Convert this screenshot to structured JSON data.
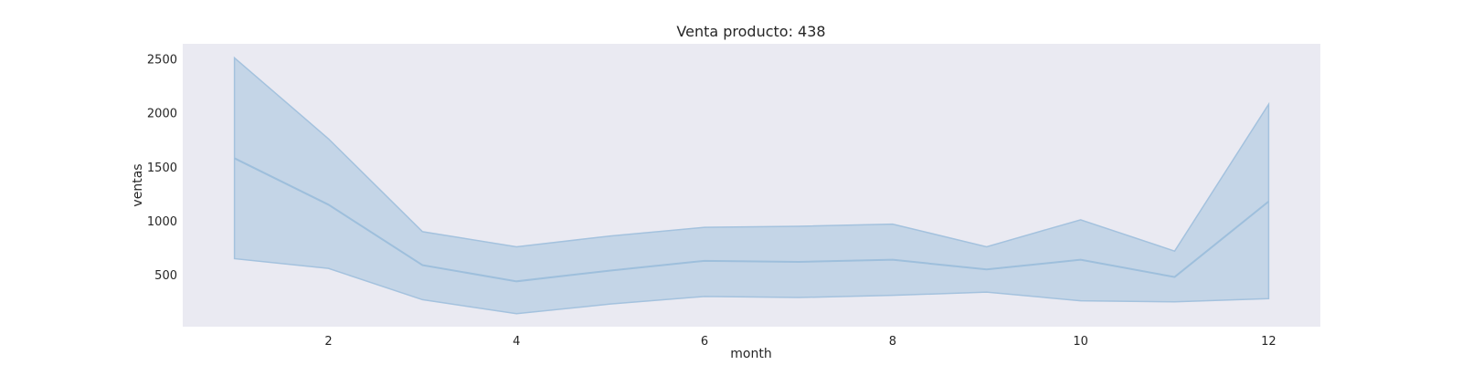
{
  "chart_data": {
    "type": "line",
    "title": "Venta producto: 438",
    "xlabel": "month",
    "ylabel": "ventas",
    "x": [
      1,
      2,
      3,
      4,
      5,
      6,
      7,
      8,
      9,
      10,
      11,
      12
    ],
    "series": [
      {
        "values": [
          1580,
          1150,
          590,
          440,
          540,
          630,
          620,
          640,
          550,
          640,
          480,
          1180
        ],
        "upper": [
          2510,
          1760,
          900,
          760,
          860,
          940,
          950,
          970,
          760,
          1010,
          720,
          2080
        ],
        "lower": [
          650,
          560,
          270,
          140,
          230,
          300,
          290,
          310,
          340,
          260,
          250,
          280
        ]
      }
    ],
    "xlim": [
      0.45,
      12.55
    ],
    "ylim": [
      20,
      2640
    ],
    "xticks": [
      2,
      4,
      6,
      8,
      10,
      12
    ],
    "yticks": [
      500,
      1000,
      1500,
      2000,
      2500
    ],
    "grid": false,
    "legend": "none",
    "colors": {
      "line": "#9ebfdc",
      "band": "#a4c2de",
      "plot_bg": "#eaeaf2"
    }
  }
}
